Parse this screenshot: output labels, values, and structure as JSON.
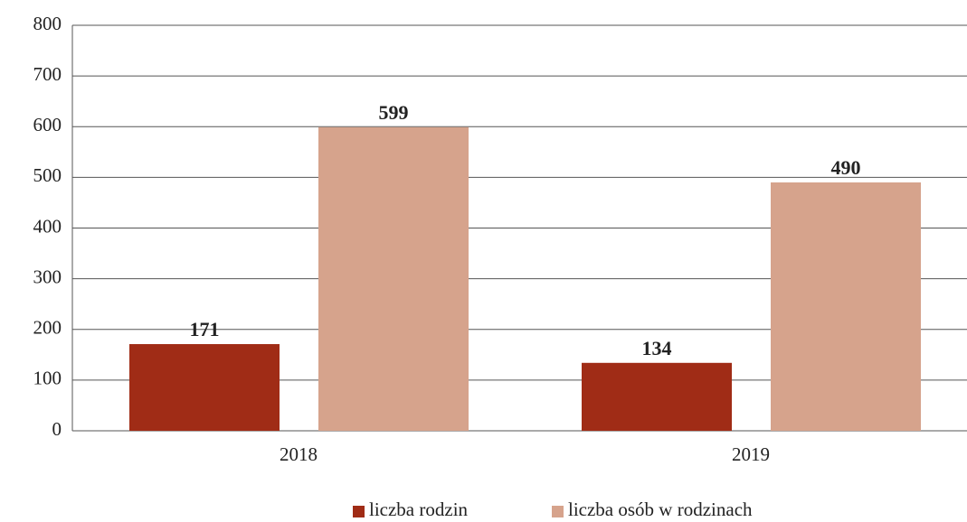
{
  "chart_data": {
    "type": "bar",
    "categories": [
      "2018",
      "2019"
    ],
    "series": [
      {
        "name": "liczba rodzin",
        "color": "#a02c16",
        "values": [
          171,
          134
        ]
      },
      {
        "name": "liczba osób w rodzinach",
        "color": "#d6a38c",
        "values": [
          599,
          490
        ]
      }
    ],
    "ylim": [
      0,
      800
    ],
    "yticks": [
      0,
      100,
      200,
      300,
      400,
      500,
      600,
      700,
      800
    ],
    "grid": true,
    "legend": "bottom"
  }
}
